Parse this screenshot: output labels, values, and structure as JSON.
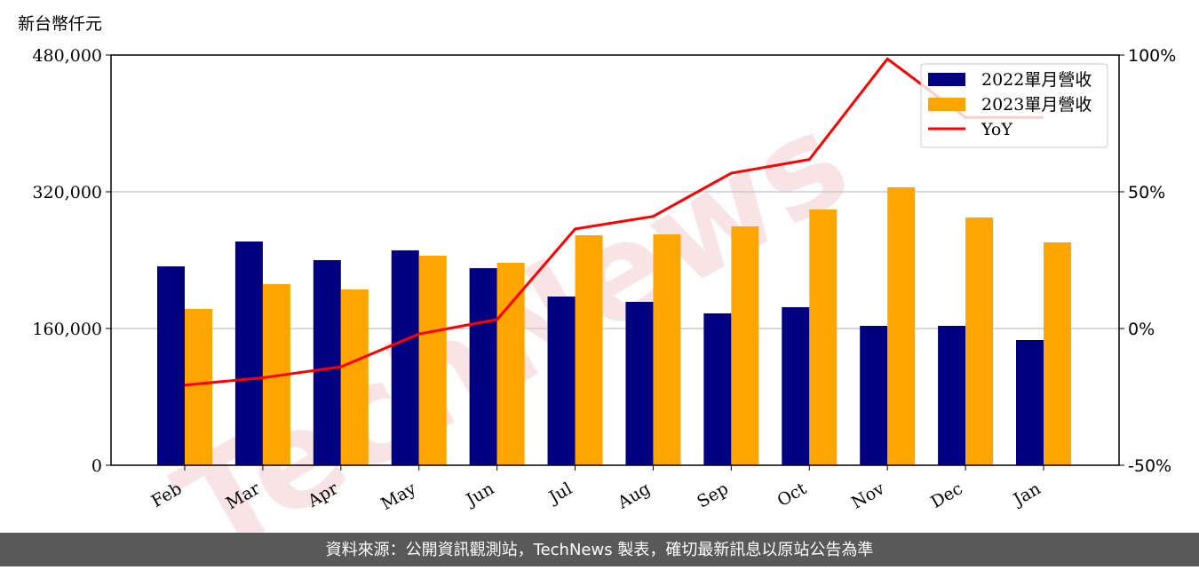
{
  "chart_data": {
    "type": "bar",
    "y_label": "新台幣仟元",
    "watermark": "TechNews",
    "footer": "資料來源：公開資訊觀測站，TechNews 製表，確切最新訊息以原站公告為準",
    "categories": [
      "Feb",
      "Mar",
      "Apr",
      "May",
      "Jun",
      "Jul",
      "Aug",
      "Sep",
      "Oct",
      "Nov",
      "Dec",
      "Jan"
    ],
    "series": [
      {
        "name": "2022單月營收",
        "type": "bar",
        "color": "#000080",
        "values": [
          232700,
          261800,
          240000,
          251400,
          230600,
          197400,
          191200,
          177700,
          184900,
          163100,
          163100,
          146500
        ]
      },
      {
        "name": "2023單月營收",
        "type": "bar",
        "color": "#ffa500",
        "values": [
          182900,
          211900,
          205700,
          245200,
          236900,
          269100,
          270100,
          279500,
          299200,
          325200,
          289900,
          260800
        ]
      },
      {
        "name": "YoY",
        "type": "line",
        "axis": "y2",
        "color": "#ff0000",
        "values": [
          -20.7,
          -18,
          -14,
          -2,
          3.3,
          36.4,
          41,
          56.8,
          61.8,
          98.6,
          77.2,
          77.2
        ]
      }
    ],
    "ylim": [
      0,
      480000
    ],
    "yticks": [
      {
        "value": 0,
        "label": "0"
      },
      {
        "value": 160000,
        "label": "160,000"
      },
      {
        "value": 320000,
        "label": "320,000"
      },
      {
        "value": 480000,
        "label": "480,000"
      }
    ],
    "y2lim": [
      -50,
      100
    ],
    "y2ticks": [
      {
        "value": -50,
        "label": "-50%"
      },
      {
        "value": 0,
        "label": "0%"
      },
      {
        "value": 50,
        "label": "50%"
      },
      {
        "value": 100,
        "label": "100%"
      }
    ],
    "grid": true,
    "legend": "upper right"
  }
}
